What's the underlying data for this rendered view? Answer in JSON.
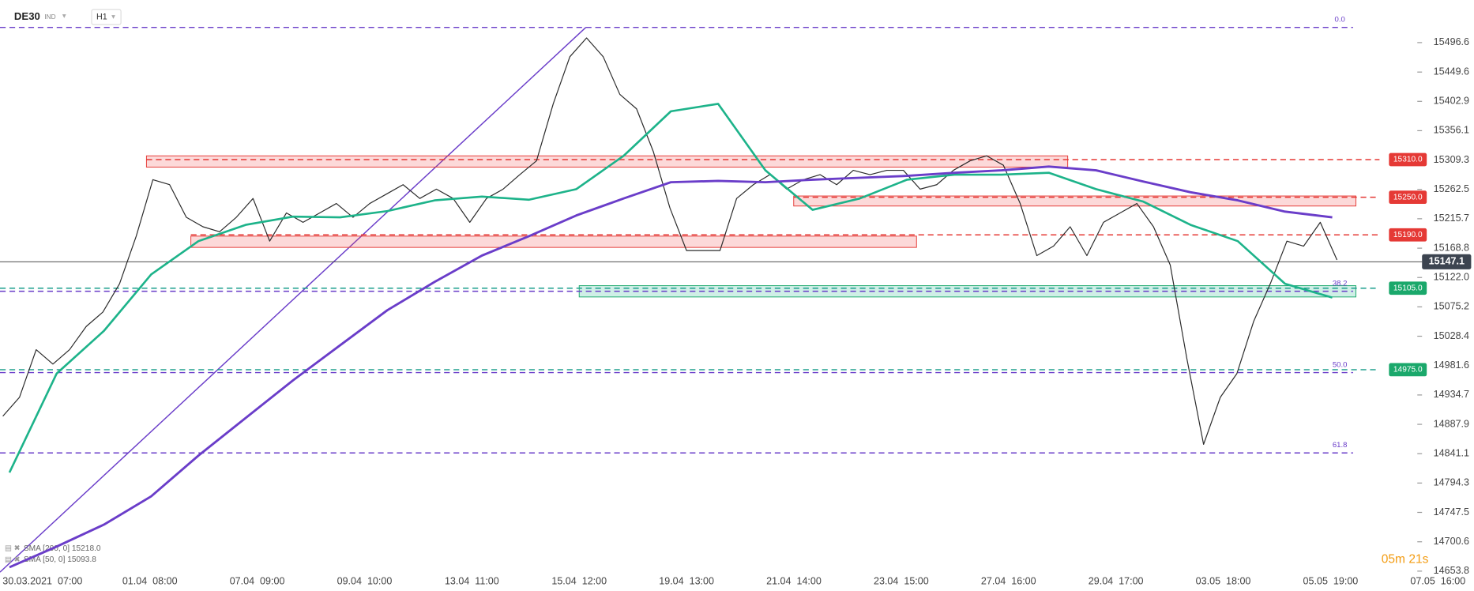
{
  "header": {
    "symbol": "DE30",
    "market": "IND",
    "interval": "H1"
  },
  "chart_data": {
    "type": "line",
    "x_labels": [
      "30.03.2021  07:00",
      "01.04  08:00",
      "07.04  09:00",
      "09.04  10:00",
      "13.04  11:00",
      "15.04  12:00",
      "19.04  13:00",
      "21.04  14:00",
      "23.04  15:00",
      "27.04  16:00",
      "29.04  17:00",
      "03.05  18:00",
      "05.05  19:00",
      "07.05  16:00"
    ],
    "series": [
      {
        "name": "DE30",
        "color": "#2b2b2b",
        "values": [
          14901,
          14931,
          15007,
          14984,
          15007,
          15044,
          15067,
          15112,
          15188,
          15278,
          15270,
          15218,
          15203,
          15195,
          15218,
          15248,
          15180,
          15225,
          15210,
          15225,
          15240,
          15218,
          15240,
          15255,
          15270,
          15248,
          15263,
          15248,
          15210,
          15248,
          15263,
          15286,
          15308,
          15399,
          15474,
          15504,
          15474,
          15414,
          15391,
          15323,
          15233,
          15165,
          15165,
          15165,
          15248,
          15270,
          15286,
          15263,
          15278,
          15286,
          15270,
          15293,
          15286,
          15293,
          15293,
          15263,
          15270,
          15293,
          15308,
          15316,
          15301,
          15240,
          15157,
          15172,
          15203,
          15157,
          15210,
          15225,
          15240,
          15203,
          15142,
          14992,
          14856,
          14931,
          14969,
          15052,
          15112,
          15180,
          15172,
          15210,
          15150
        ]
      },
      {
        "name": "SMA [50, 0] 15093.8",
        "color": "#1db38a",
        "values": [
          14811,
          14969,
          15037,
          15127,
          15180,
          15206,
          15219,
          15218,
          15228,
          15245,
          15251,
          15246,
          15263,
          15316,
          15387,
          15399,
          15293,
          15230,
          15248,
          15278,
          15286,
          15286,
          15289,
          15263,
          15243,
          15206,
          15180,
          15112,
          15090
        ]
      },
      {
        "name": "SMA [200, 0] 15218.0",
        "color": "#6a3dc9",
        "values": [
          14660,
          14693,
          14728,
          14773,
          14838,
          14898,
          14958,
          15014,
          15070,
          15115,
          15157,
          15188,
          15221,
          15248,
          15274,
          15276,
          15274,
          15278,
          15281,
          15284,
          15289,
          15293,
          15299,
          15293,
          15275,
          15258,
          15245,
          15227,
          15218
        ]
      }
    ],
    "ylim": [
      14652.3,
      15564.5
    ],
    "yticks": [
      15496.6,
      15449.6,
      15402.9,
      15356.1,
      15309.3,
      15262.5,
      15215.7,
      15168.8,
      {
        "value": 15122,
        "label": "15122.0"
      },
      15075.2,
      15028.4,
      14981.6,
      14934.7,
      14887.9,
      14841.1,
      14794.3,
      14747.5,
      14700.6,
      14653.8
    ],
    "levels": [
      {
        "value": 15310,
        "label": "15310.0",
        "color": "#e53935",
        "zone": [
          15298,
          15316
        ]
      },
      {
        "value": 15250,
        "label": "15250.0",
        "color": "#e53935",
        "zone": [
          15236,
          15252
        ]
      },
      {
        "value": 15190,
        "label": "15190.0",
        "color": "#e53935",
        "zone": [
          15170,
          15188
        ]
      },
      {
        "value": 15105,
        "label": "15105.0",
        "color": "#1aa86b",
        "zone": [
          15091,
          15109
        ]
      },
      {
        "value": 14975,
        "label": "14975.0",
        "color": "#1aa86b"
      }
    ],
    "fibonacci": [
      {
        "ratio": {
          "value": 0,
          "label": "0.0"
        },
        "price": 15520.8
      },
      {
        "ratio": 38.2,
        "price": 15100.1
      },
      {
        "ratio": {
          "value": 50,
          "label": "50.0"
        },
        "price": 14970.4
      },
      {
        "ratio": 61.8,
        "price": 14842.3
      }
    ],
    "fib_color": "#6a3dc9",
    "last_price": 15147.1,
    "timer": "05m 21s"
  }
}
